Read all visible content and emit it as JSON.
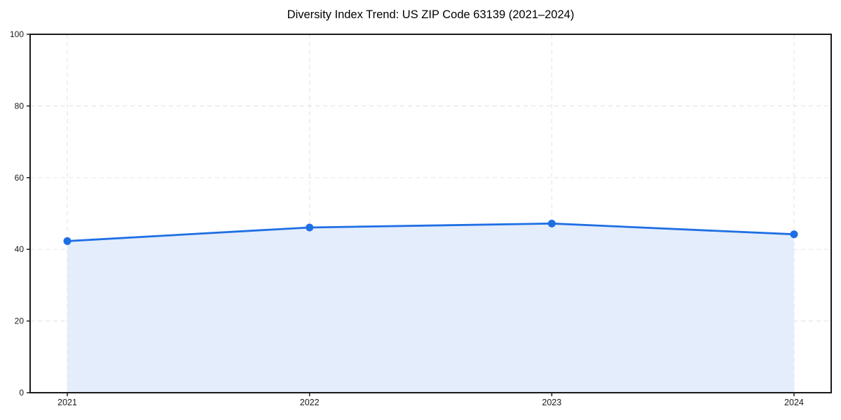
{
  "chart_data": {
    "type": "line",
    "title": "Diversity Index Trend: US ZIP Code 63139 (2021–2024)",
    "x": [
      2021,
      2022,
      2023,
      2024
    ],
    "values": [
      42.3,
      46.1,
      47.2,
      44.2
    ],
    "xlabel": "",
    "ylabel": "",
    "ylim": [
      0,
      100
    ],
    "yticks": [
      0,
      20,
      40,
      60,
      80,
      100
    ],
    "xtick_labels": [
      "2021",
      "2022",
      "2023",
      "2024"
    ],
    "ytick_labels": [
      "0",
      "20",
      "40",
      "60",
      "80",
      "100"
    ],
    "grid": true,
    "grid_style": "dashed",
    "legend": false,
    "area_fill": true,
    "colors": {
      "line": "#1f6fe4",
      "marker": "#1f6fe4",
      "fill": "#e4edfc",
      "grid": "#e6e6e6",
      "spine": "#1a1a1a",
      "tick_text": "#1a1a1a",
      "background": "#ffffff"
    }
  }
}
